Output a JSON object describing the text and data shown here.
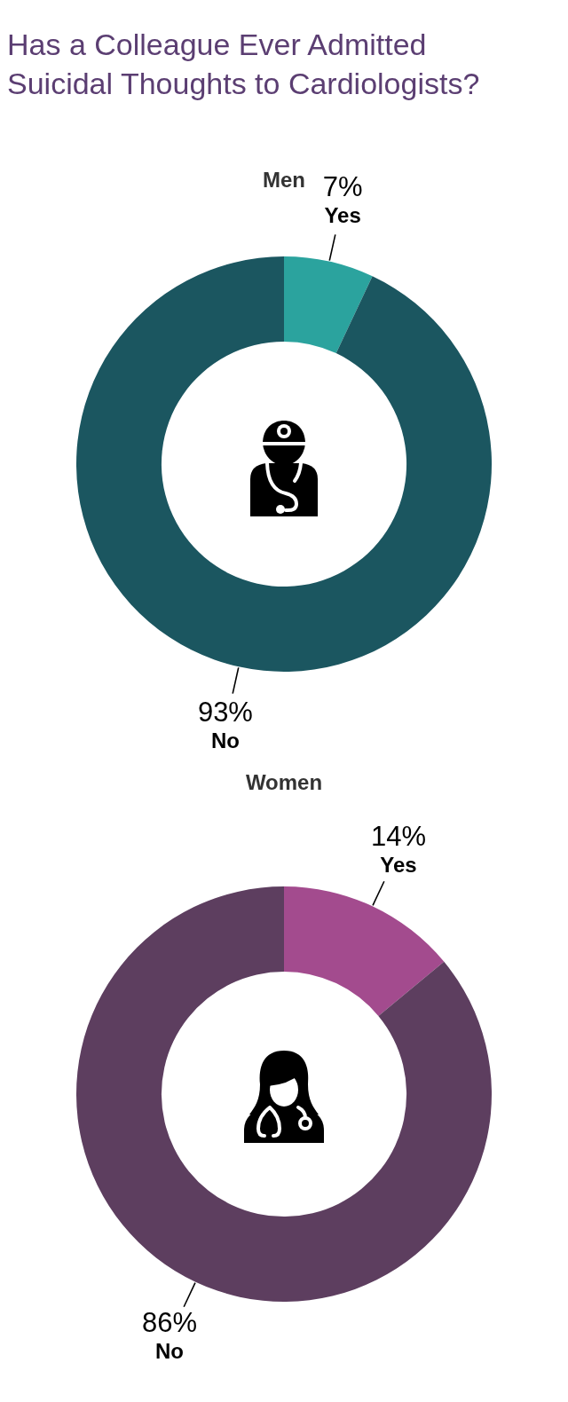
{
  "chart_data": [
    {
      "type": "donut",
      "title": "Has a Colleague Ever Admitted Suicidal Thoughts to Cardiologists?",
      "subtitle": "Men",
      "categories": [
        "Yes",
        "No"
      ],
      "values": [
        7,
        93
      ],
      "colors": [
        "#2ba39e",
        "#1b5660"
      ],
      "value_labels": [
        "7%",
        "93%"
      ]
    },
    {
      "type": "donut",
      "subtitle": "Women",
      "categories": [
        "Yes",
        "No"
      ],
      "values": [
        14,
        86
      ],
      "colors": [
        "#a34b8e",
        "#5d3e5f"
      ],
      "value_labels": [
        "14%",
        "86%"
      ]
    }
  ]
}
